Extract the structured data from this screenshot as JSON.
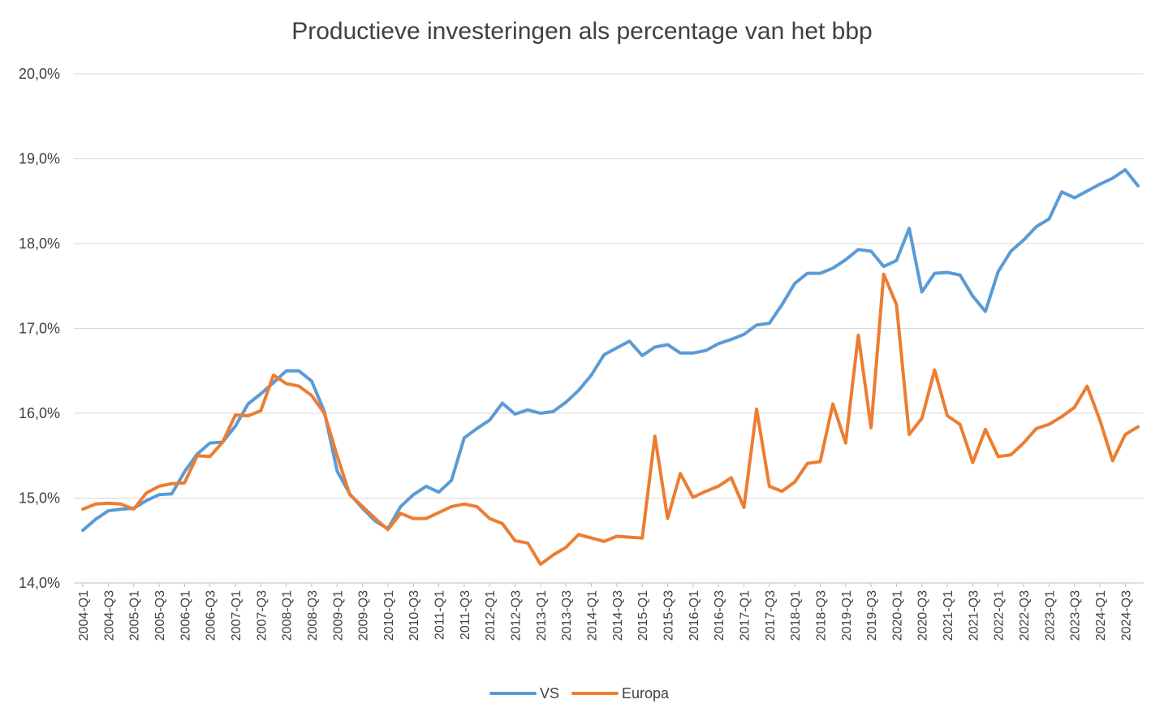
{
  "chart_data": {
    "type": "line",
    "title": "Productieve investeringen als percentage van het bbp",
    "xlabel": "",
    "ylabel": "",
    "ylim": [
      14.0,
      20.0
    ],
    "yticks": [
      "14,0%",
      "15,0%",
      "16,0%",
      "17,0%",
      "18,0%",
      "19,0%",
      "20,0%"
    ],
    "ytick_values": [
      14,
      15,
      16,
      17,
      18,
      19,
      20
    ],
    "grid": true,
    "legend_position": "bottom",
    "x_tick_labels": [
      "2004-Q1",
      "2004-Q3",
      "2005-Q1",
      "2005-Q3",
      "2006-Q1",
      "2006-Q3",
      "2007-Q1",
      "2007-Q3",
      "2008-Q1",
      "2008-Q3",
      "2009-Q1",
      "2009-Q3",
      "2010-Q1",
      "2010-Q3",
      "2011-Q1",
      "2011-Q3",
      "2012-Q1",
      "2012-Q3",
      "2013-Q1",
      "2013-Q3",
      "2014-Q1",
      "2014-Q3",
      "2015-Q1",
      "2015-Q3",
      "2016-Q1",
      "2016-Q3",
      "2017-Q1",
      "2017-Q3",
      "2018-Q1",
      "2018-Q3",
      "2019-Q1",
      "2019-Q3",
      "2020-Q1",
      "2020-Q3",
      "2021-Q1",
      "2021-Q3",
      "2022-Q1",
      "2022-Q3",
      "2023-Q1",
      "2023-Q3",
      "2024-Q1",
      "2024-Q3"
    ],
    "categories": [
      "2004-Q1",
      "2004-Q2",
      "2004-Q3",
      "2004-Q4",
      "2005-Q1",
      "2005-Q2",
      "2005-Q3",
      "2005-Q4",
      "2006-Q1",
      "2006-Q2",
      "2006-Q3",
      "2006-Q4",
      "2007-Q1",
      "2007-Q2",
      "2007-Q3",
      "2007-Q4",
      "2008-Q1",
      "2008-Q2",
      "2008-Q3",
      "2008-Q4",
      "2009-Q1",
      "2009-Q2",
      "2009-Q3",
      "2009-Q4",
      "2010-Q1",
      "2010-Q2",
      "2010-Q3",
      "2010-Q4",
      "2011-Q1",
      "2011-Q2",
      "2011-Q3",
      "2011-Q4",
      "2012-Q1",
      "2012-Q2",
      "2012-Q3",
      "2012-Q4",
      "2013-Q1",
      "2013-Q2",
      "2013-Q3",
      "2013-Q4",
      "2014-Q1",
      "2014-Q2",
      "2014-Q3",
      "2014-Q4",
      "2015-Q1",
      "2015-Q2",
      "2015-Q3",
      "2015-Q4",
      "2016-Q1",
      "2016-Q2",
      "2016-Q3",
      "2016-Q4",
      "2017-Q1",
      "2017-Q2",
      "2017-Q3",
      "2017-Q4",
      "2018-Q1",
      "2018-Q2",
      "2018-Q3",
      "2018-Q4",
      "2019-Q1",
      "2019-Q2",
      "2019-Q3",
      "2019-Q4",
      "2020-Q1",
      "2020-Q2",
      "2020-Q3",
      "2020-Q4",
      "2021-Q1",
      "2021-Q2",
      "2021-Q3",
      "2021-Q4",
      "2022-Q1",
      "2022-Q2",
      "2022-Q3",
      "2022-Q4",
      "2023-Q1",
      "2023-Q2",
      "2023-Q3",
      "2023-Q4",
      "2024-Q1",
      "2024-Q2",
      "2024-Q3",
      "2024-Q4"
    ],
    "series": [
      {
        "name": "VS",
        "color": "#5B9BD5",
        "values": [
          14.62,
          14.75,
          14.85,
          14.87,
          14.88,
          14.97,
          15.04,
          15.05,
          15.31,
          15.52,
          15.65,
          15.66,
          15.85,
          16.11,
          16.23,
          16.36,
          16.5,
          16.5,
          16.38,
          16.02,
          15.32,
          15.05,
          14.88,
          14.73,
          14.64,
          14.9,
          15.04,
          15.14,
          15.07,
          15.21,
          15.71,
          15.82,
          15.92,
          16.12,
          15.99,
          16.04,
          16.0,
          16.02,
          16.13,
          16.27,
          16.45,
          16.69,
          16.77,
          16.85,
          16.68,
          16.78,
          16.81,
          16.71,
          16.71,
          16.74,
          16.82,
          16.87,
          16.93,
          17.04,
          17.06,
          17.28,
          17.53,
          17.65,
          17.65,
          17.71,
          17.81,
          17.93,
          17.91,
          17.73,
          17.8,
          18.18,
          17.43,
          17.65,
          17.66,
          17.63,
          17.38,
          17.2,
          17.67,
          17.91,
          18.04,
          18.2,
          18.29,
          18.61,
          18.54,
          18.62,
          18.7,
          18.77,
          18.87,
          18.68
        ]
      },
      {
        "name": "Europa",
        "color": "#ED7D31",
        "values": [
          14.87,
          14.93,
          14.94,
          14.93,
          14.87,
          15.06,
          15.14,
          15.17,
          15.18,
          15.5,
          15.49,
          15.66,
          15.98,
          15.97,
          16.03,
          16.45,
          16.35,
          16.32,
          16.21,
          16.0,
          15.5,
          15.04,
          14.9,
          14.76,
          14.63,
          14.82,
          14.76,
          14.76,
          14.83,
          14.9,
          14.93,
          14.9,
          14.76,
          14.7,
          14.5,
          14.47,
          14.22,
          14.33,
          14.42,
          14.57,
          14.53,
          14.49,
          14.55,
          14.54,
          14.53,
          15.73,
          14.76,
          15.29,
          15.01,
          15.08,
          15.14,
          15.24,
          14.89,
          16.05,
          15.14,
          15.08,
          15.19,
          15.41,
          15.43,
          16.11,
          15.65,
          16.92,
          15.83,
          17.64,
          17.28,
          15.75,
          15.94,
          16.51,
          15.97,
          15.87,
          15.42,
          15.81,
          15.49,
          15.51,
          15.65,
          15.82,
          15.87,
          15.96,
          16.07,
          16.32,
          15.92,
          15.44,
          15.75,
          15.84
        ]
      }
    ]
  }
}
